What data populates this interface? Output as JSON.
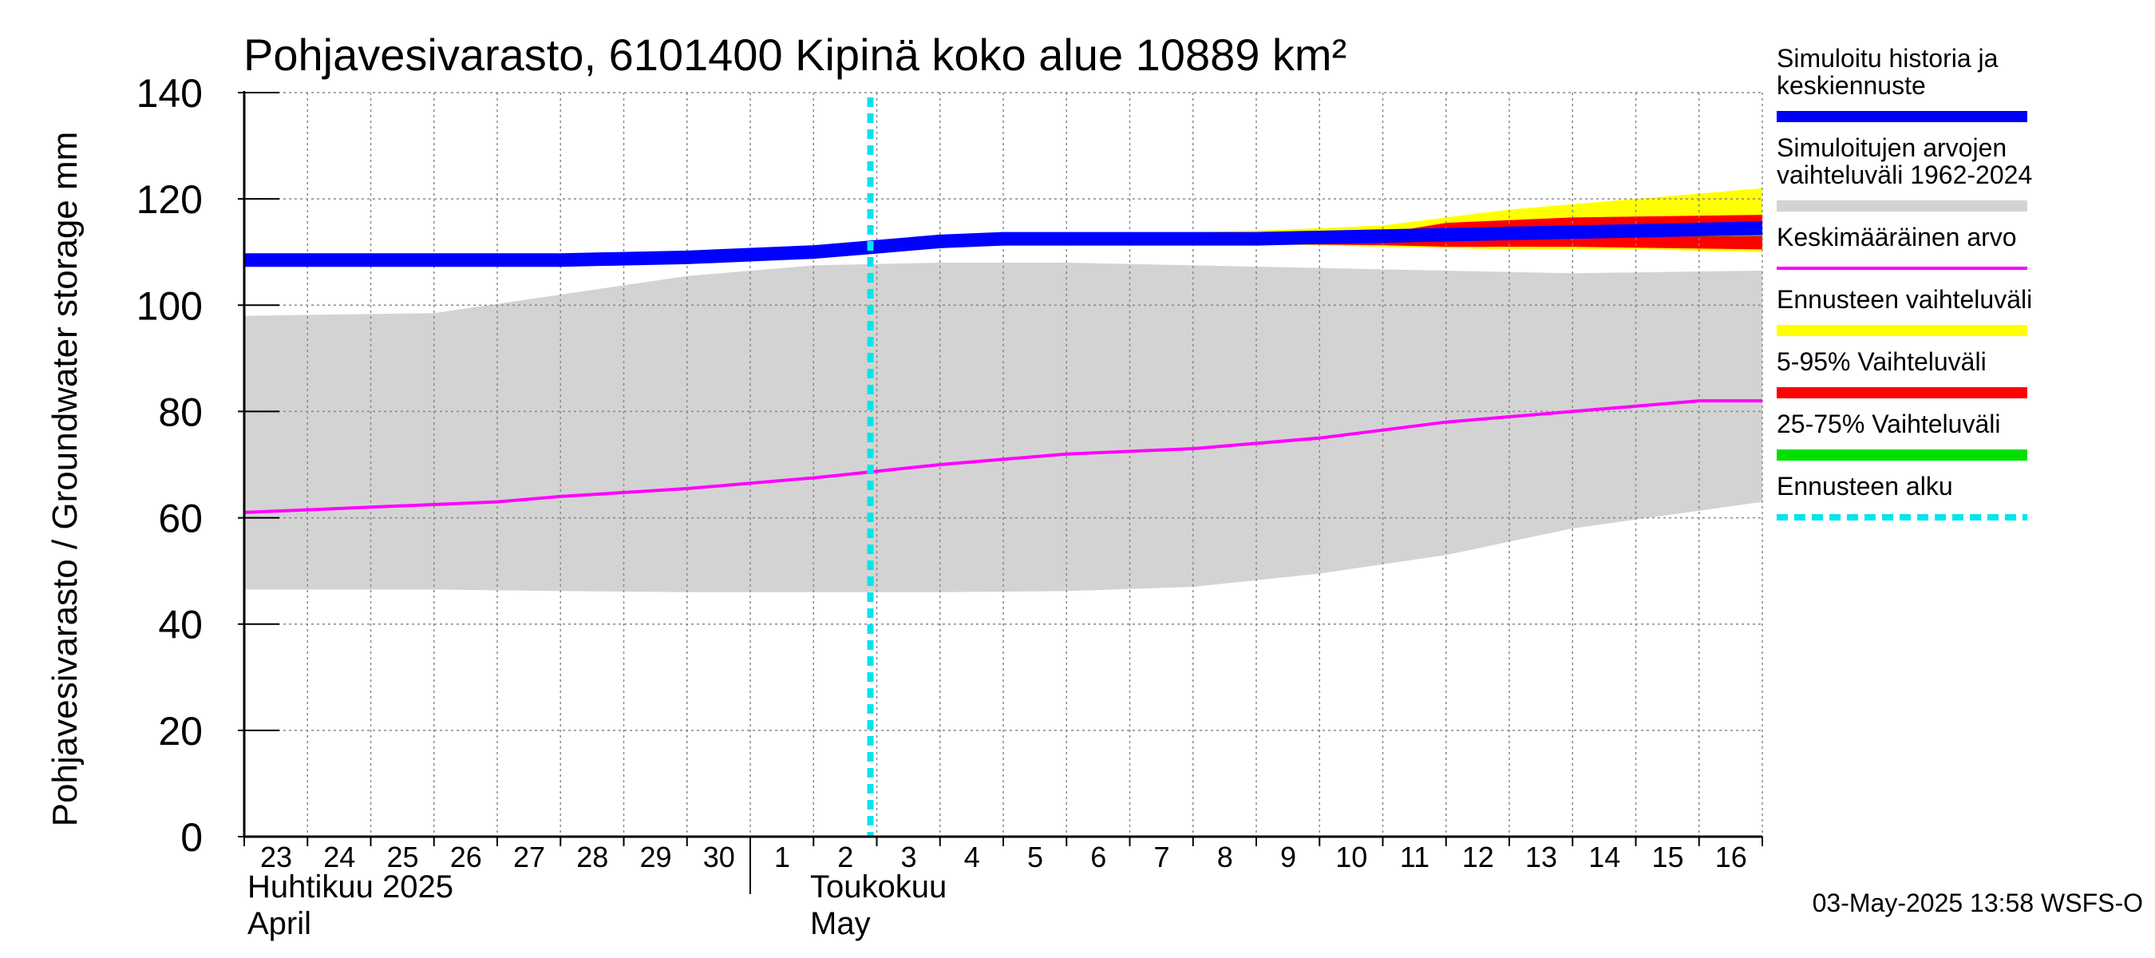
{
  "chart_data": {
    "type": "area",
    "title": "Pohjavesivarasto, 6101400 Kipinä koko alue 10889 km²",
    "ylabel": "Pohjavesivarasto / Groundwater storage   mm",
    "ylim": [
      0,
      140
    ],
    "yticks": [
      "0",
      "20",
      "40",
      "60",
      "80",
      "100",
      "120",
      "140"
    ],
    "x_range": [
      "2025-04-23",
      "2025-05-17"
    ],
    "x_tick_labels": [
      "23",
      "24",
      "25",
      "26",
      "27",
      "28",
      "29",
      "30",
      "1",
      "2",
      "3",
      "4",
      "5",
      "6",
      "7",
      "8",
      "9",
      "10",
      "11",
      "12",
      "13",
      "14",
      "15",
      "16"
    ],
    "month_labels": [
      {
        "line1": "Huhtikuu  2025",
        "line2": "April"
      },
      {
        "line1": "Toukokuu",
        "line2": "May"
      }
    ],
    "grid": true,
    "legend_position": "right",
    "forecast_start": "2025-05-03",
    "series": [
      {
        "name": "Simuloitujen arvojen vaihteluväli 1962-2024",
        "kind": "band",
        "color": "#d3d3d3",
        "x": [
          "2025-04-23",
          "2025-04-26",
          "2025-04-28",
          "2025-04-30",
          "2025-05-02",
          "2025-05-04",
          "2025-05-06",
          "2025-05-08",
          "2025-05-10",
          "2025-05-12",
          "2025-05-14",
          "2025-05-17"
        ],
        "lower": [
          46.5,
          46.5,
          46.2,
          46,
          46,
          46,
          46.2,
          47,
          49.5,
          53,
          58,
          63
        ],
        "upper": [
          98,
          98.5,
          102,
          105.5,
          107.5,
          108,
          108,
          107.5,
          107,
          106.5,
          106,
          106.5
        ]
      },
      {
        "name": "Ennusteen vaihteluväli",
        "kind": "band",
        "color": "#ffff00",
        "x": [
          "2025-05-03",
          "2025-05-05",
          "2025-05-07",
          "2025-05-09",
          "2025-05-11",
          "2025-05-13",
          "2025-05-15",
          "2025-05-17"
        ],
        "lower": [
          111,
          112,
          112,
          111.5,
          111,
          110.5,
          110.5,
          110
        ],
        "upper": [
          111,
          112.5,
          113.5,
          114,
          115,
          118,
          120,
          122
        ]
      },
      {
        "name": "5-95% Vaihteluväli",
        "kind": "band",
        "color": "#ff0000",
        "x": [
          "2025-05-03",
          "2025-05-05",
          "2025-05-07",
          "2025-05-09",
          "2025-05-11",
          "2025-05-12",
          "2025-05-14",
          "2025-05-17"
        ],
        "lower": [
          111,
          112,
          112,
          111.5,
          111.3,
          111,
          111,
          110.5
        ],
        "upper": [
          111,
          112.3,
          112.8,
          113,
          113.5,
          115.5,
          116.5,
          117
        ]
      },
      {
        "name": "25-75% Vaihteluväli",
        "kind": "band",
        "color": "#00e000",
        "x": [
          "2025-05-03",
          "2025-05-09",
          "2025-05-17"
        ],
        "lower": [
          111,
          112.5,
          113
        ],
        "upper": [
          111,
          113,
          114.5
        ]
      },
      {
        "name": "Simuloitu historia ja keskiennuste",
        "kind": "line",
        "color": "#0000ff",
        "x": [
          "2025-04-23",
          "2025-04-26",
          "2025-04-28",
          "2025-04-30",
          "2025-05-01",
          "2025-05-02",
          "2025-05-03",
          "2025-05-04",
          "2025-05-05",
          "2025-05-07",
          "2025-05-09",
          "2025-05-11",
          "2025-05-13",
          "2025-05-15",
          "2025-05-17"
        ],
        "y": [
          108.5,
          108.5,
          108.5,
          109,
          109.5,
          110,
          111,
          112,
          112.5,
          112.5,
          112.5,
          113,
          113.5,
          114,
          114.5
        ]
      },
      {
        "name": "Keskimääräinen arvo",
        "kind": "line",
        "color": "#ff00ff",
        "x": [
          "2025-04-23",
          "2025-04-24",
          "2025-04-25",
          "2025-04-27",
          "2025-04-28",
          "2025-04-30",
          "2025-05-02",
          "2025-05-04",
          "2025-05-06",
          "2025-05-08",
          "2025-05-10",
          "2025-05-12",
          "2025-05-14",
          "2025-05-15",
          "2025-05-16",
          "2025-05-17"
        ],
        "y": [
          61,
          61.5,
          62,
          63,
          64,
          65.5,
          67.5,
          70,
          72,
          73,
          75,
          78,
          80,
          81,
          82,
          82
        ]
      },
      {
        "name": "Ennusteen alku",
        "kind": "vline",
        "color": "#00e5ee",
        "x": "2025-05-03"
      }
    ],
    "legend": [
      {
        "label": "Simuloitu historia ja\nkeskiennuste",
        "color": "#0000ff",
        "style": "solid"
      },
      {
        "label": "Simuloitujen arvojen\nvaihteluväli 1962-2024",
        "color": "#d3d3d3",
        "style": "solid"
      },
      {
        "label": "Keskimääräinen arvo",
        "color": "#ff00ff",
        "style": "thin"
      },
      {
        "label": "Ennusteen vaihteluväli",
        "color": "#ffff00",
        "style": "solid"
      },
      {
        "label": "5-95% Vaihteluväli",
        "color": "#ff0000",
        "style": "solid"
      },
      {
        "label": "25-75% Vaihteluväli",
        "color": "#00e000",
        "style": "solid"
      },
      {
        "label": "Ennusteen alku",
        "color": "#00e5ee",
        "style": "dashed"
      }
    ]
  },
  "footer": "03-May-2025 13:58 WSFS-O"
}
